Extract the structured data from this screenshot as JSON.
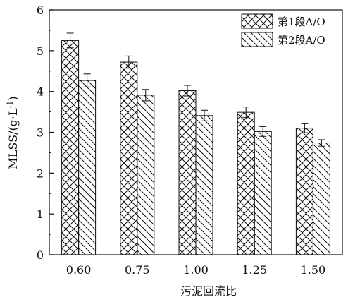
{
  "chart_data": {
    "type": "bar",
    "categories": [
      "0.60",
      "0.75",
      "1.00",
      "1.25",
      "1.50"
    ],
    "series": [
      {
        "name": "第1段A/O",
        "values": [
          5.25,
          4.72,
          4.02,
          3.49,
          3.1
        ],
        "errors": [
          0.18,
          0.15,
          0.13,
          0.13,
          0.11
        ],
        "pattern": "crosshatch"
      },
      {
        "name": "第2段A/O",
        "values": [
          4.27,
          3.91,
          3.41,
          3.02,
          2.74
        ],
        "errors": [
          0.16,
          0.14,
          0.13,
          0.12,
          0.08
        ],
        "pattern": "diagonal"
      }
    ],
    "xlabel": "污泥回流比",
    "ylabel_main": "MLSS/(g·L",
    "ylabel_sup": "-1",
    "ylabel_close": ")",
    "ylim": [
      0,
      6
    ],
    "yticks": [
      0,
      1,
      2,
      3,
      4,
      5,
      6
    ],
    "grid": false,
    "legend_position": "top-right"
  }
}
